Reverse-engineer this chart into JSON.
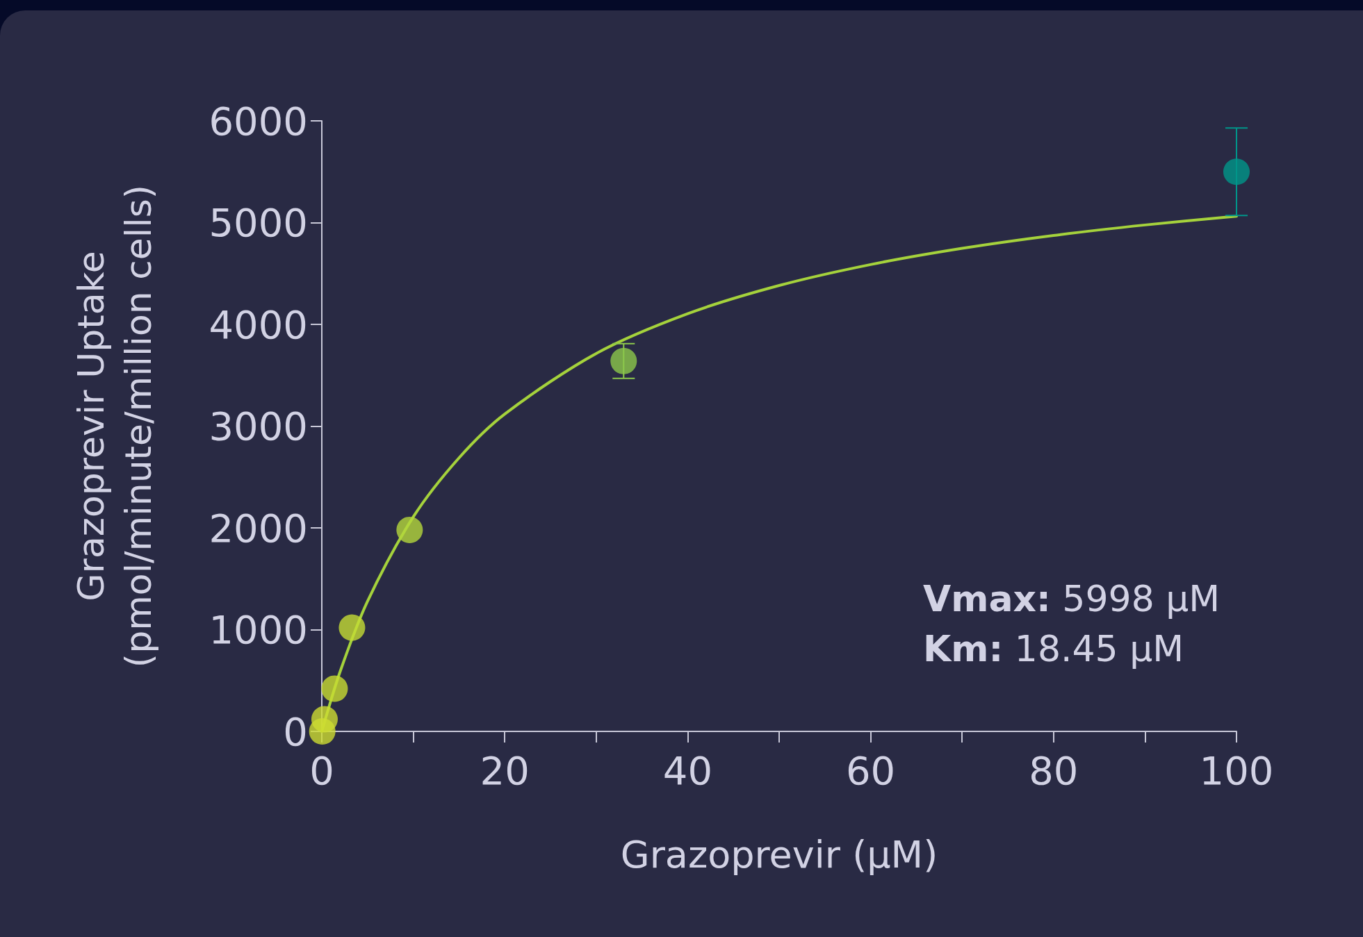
{
  "chart_data": {
    "type": "scatter",
    "xlabel": "Grazoprevir (µM)",
    "ylabel": "Grazoprevir Uptake\n(pmol/minute/million cells)",
    "xlim": [
      0,
      100
    ],
    "xticks": [
      0,
      {
        "value": 10,
        "label": null
      },
      20,
      {
        "value": 30,
        "label": null
      },
      40,
      {
        "value": 50,
        "label": null
      },
      60,
      {
        "value": 70,
        "label": null
      },
      80,
      {
        "value": 90,
        "label": null
      },
      100
    ],
    "ylim": [
      0,
      6000
    ],
    "yticks": [
      0,
      1000,
      2000,
      3000,
      4000,
      5000,
      6000
    ],
    "grid": false,
    "marker": "circle",
    "annotations": [
      "Vmax: 5998 µM",
      "Km: 18.45 µM"
    ],
    "series": [
      {
        "type": "line",
        "color": "#a5d23c",
        "marker": "none",
        "line_style": "solid",
        "x": [
          0,
          2,
          5,
          10,
          15,
          20,
          30,
          40,
          50,
          60,
          70,
          80,
          90,
          100
        ],
        "values": [
          0,
          587,
          1279,
          2108,
          2688,
          3119,
          3714,
          4105,
          4382,
          4588,
          4747,
          4874,
          4977,
          5063
        ]
      },
      {
        "colors": [
          "#cddc32",
          "#cddc32",
          "#c8dc32",
          "#c4dc35",
          "#b4d73c",
          "#8cc84b",
          "#00968a"
        ],
        "x": [
          0.05,
          0.3,
          1.4,
          3.3,
          9.6,
          33,
          100
        ],
        "values": [
          0,
          120,
          420,
          1020,
          1980,
          3640,
          5500
        ],
        "errors": [
          null,
          null,
          null,
          null,
          null,
          [
            3470,
            3810
          ],
          [
            5070,
            5930
          ]
        ]
      }
    ]
  }
}
